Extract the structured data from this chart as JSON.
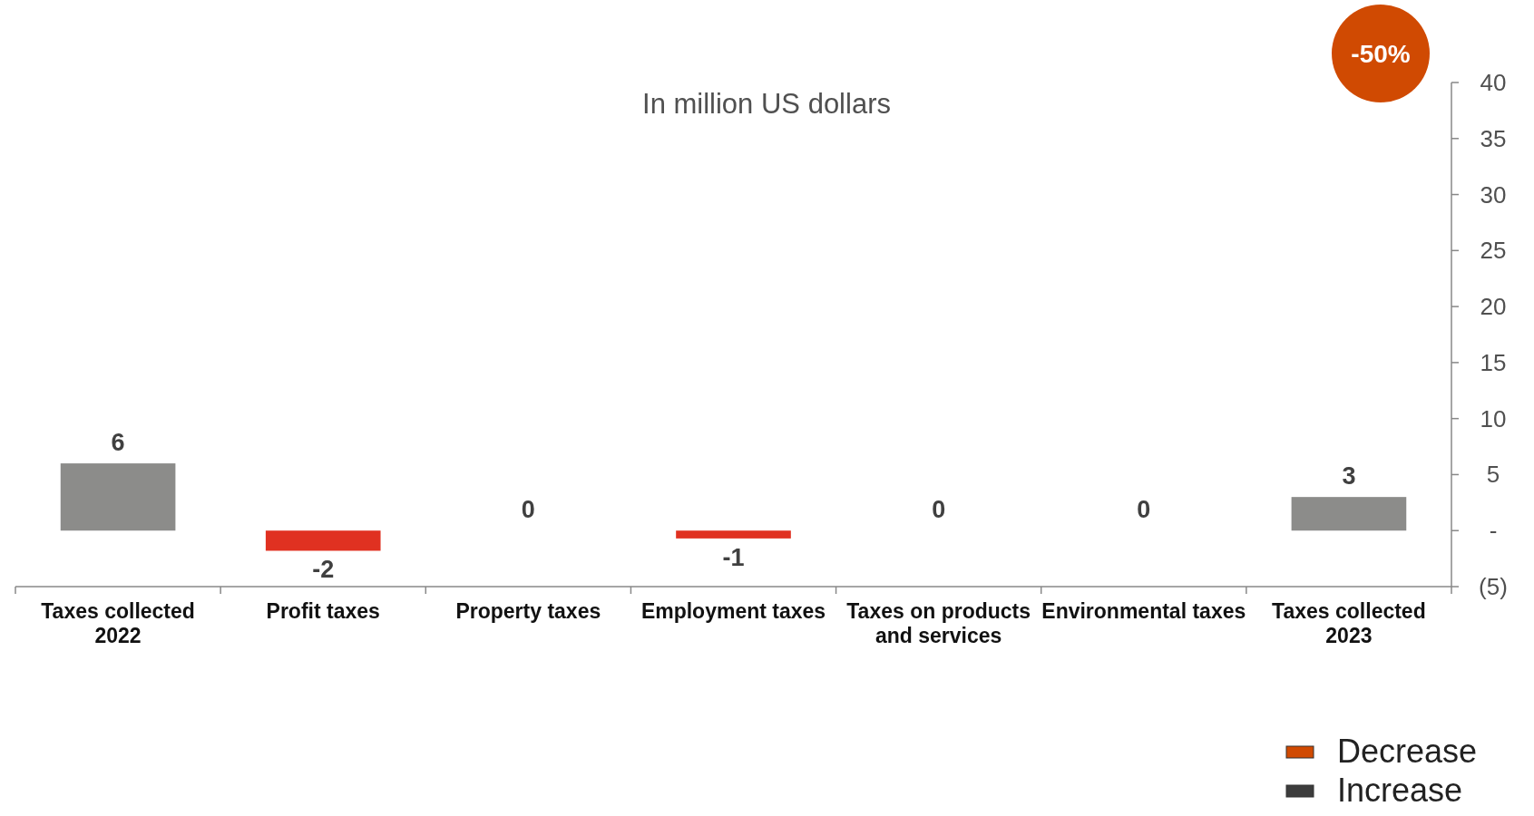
{
  "chart_data": {
    "type": "bar",
    "title": "In million US dollars",
    "categories": [
      "Taxes collected 2022",
      "Profit taxes",
      "Property taxes",
      "Employment taxes",
      "Taxes on products and services",
      "Environmental taxes",
      "Taxes collected 2023"
    ],
    "series": [
      {
        "values": [
          6,
          -1.8,
          0,
          -0.7,
          0,
          0,
          3
        ],
        "colors": [
          "#8c8c8a",
          "#e03121",
          "#8c8c8a",
          "#e03121",
          "#8c8c8a",
          "#8c8c8a",
          "#8c8c8a"
        ],
        "value_labels": [
          "6",
          "-2",
          "0",
          "-1",
          "0",
          "0",
          "3"
        ]
      },
      {
        "name": "Decrease",
        "color": "#d04a02",
        "values": [
          null,
          null,
          null,
          null,
          null,
          null,
          null
        ]
      },
      {
        "name": "Increase",
        "color": "#3c3c3c",
        "values": [
          null,
          null,
          null,
          null,
          null,
          null,
          null
        ]
      }
    ],
    "ylim": [
      -5,
      40
    ],
    "yticks": [
      {
        "value": -5,
        "label": "(5)"
      },
      {
        "value": 0,
        "label": "-"
      },
      5,
      10,
      15,
      20,
      25,
      30,
      35,
      40
    ],
    "annotations": [
      "-50%"
    ],
    "grid": false,
    "legend": "bottom right"
  }
}
